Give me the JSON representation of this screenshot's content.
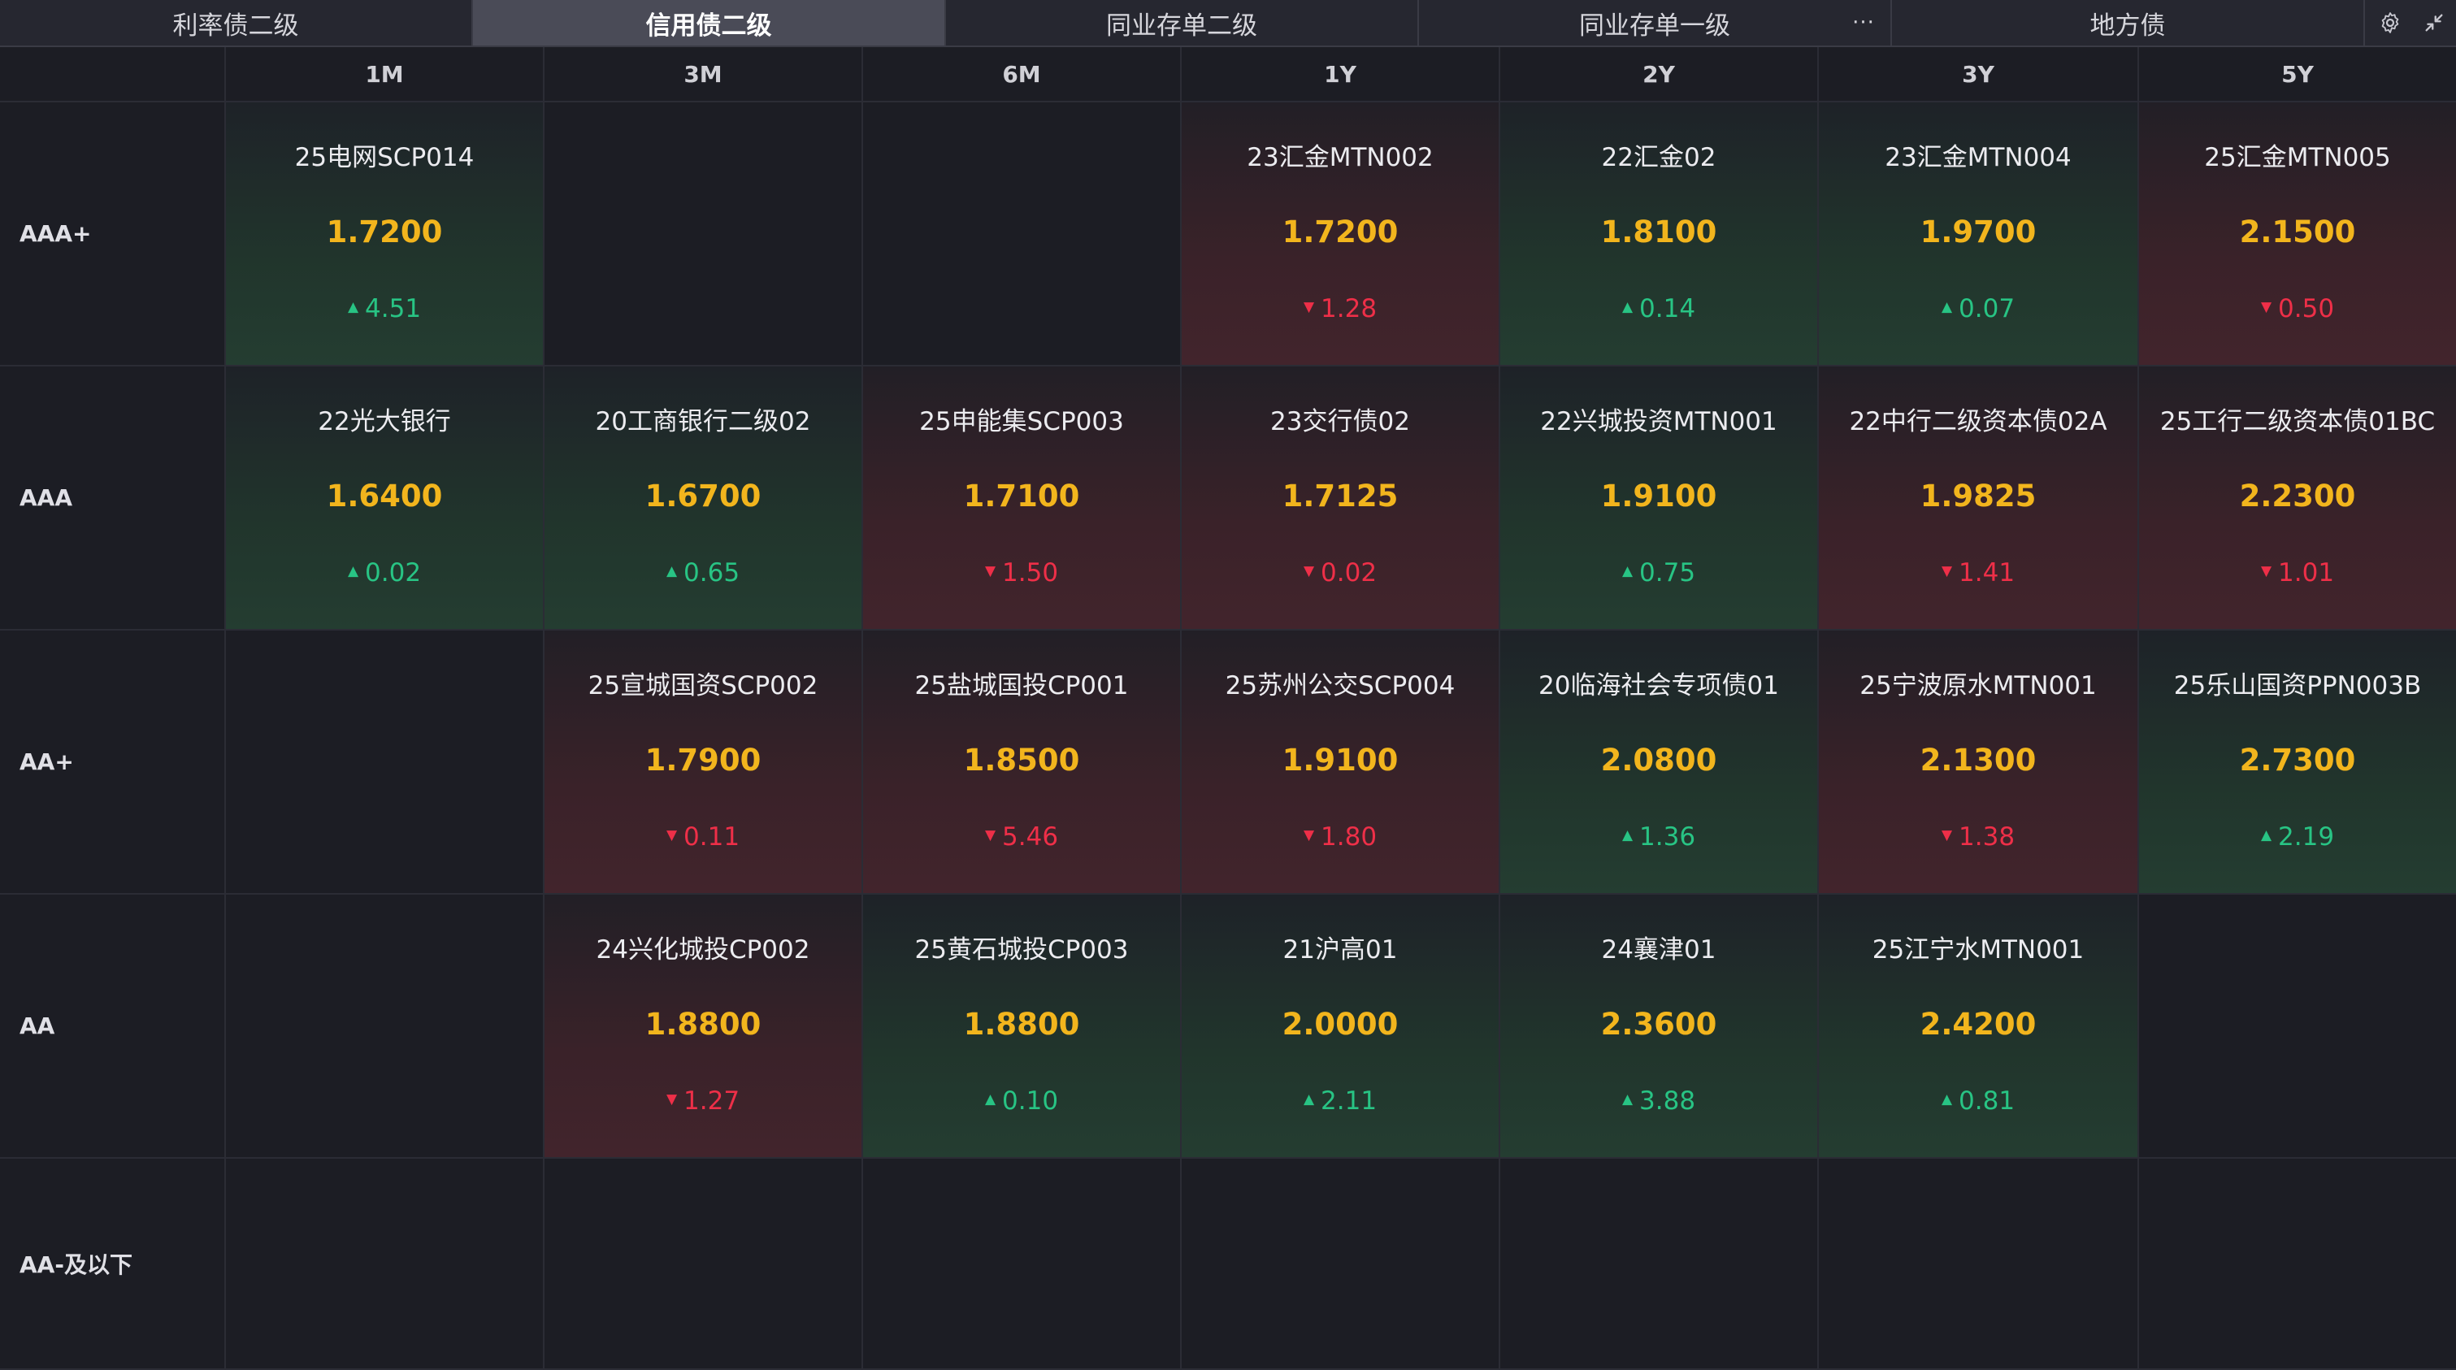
{
  "tabs": [
    {
      "label": "利率债二级",
      "active": false
    },
    {
      "label": "信用债二级",
      "active": true
    },
    {
      "label": "同业存单二级",
      "active": false
    },
    {
      "label": "同业存单一级",
      "active": false
    },
    {
      "label": "地方债",
      "active": false
    }
  ],
  "tab_more_label": "···",
  "toolbar_icons": [
    "settings-icon",
    "collapse-icon"
  ],
  "columns": [
    "1M",
    "3M",
    "6M",
    "1Y",
    "2Y",
    "3Y",
    "5Y"
  ],
  "rows": [
    {
      "rating": "AAA+",
      "cells": [
        {
          "name": "25电网SCP014",
          "yield": "1.7200",
          "change": "4.51",
          "direction": "up"
        },
        null,
        null,
        {
          "name": "23汇金MTN002",
          "yield": "1.7200",
          "change": "1.28",
          "direction": "down"
        },
        {
          "name": "22汇金02",
          "yield": "1.8100",
          "change": "0.14",
          "direction": "up"
        },
        {
          "name": "23汇金MTN004",
          "yield": "1.9700",
          "change": "0.07",
          "direction": "up"
        },
        {
          "name": "25汇金MTN005",
          "yield": "2.1500",
          "change": "0.50",
          "direction": "down"
        }
      ]
    },
    {
      "rating": "AAA",
      "cells": [
        {
          "name": "22光大银行",
          "yield": "1.6400",
          "change": "0.02",
          "direction": "up"
        },
        {
          "name": "20工商银行二级02",
          "yield": "1.6700",
          "change": "0.65",
          "direction": "up"
        },
        {
          "name": "25申能集SCP003",
          "yield": "1.7100",
          "change": "1.50",
          "direction": "down"
        },
        {
          "name": "23交行债02",
          "yield": "1.7125",
          "change": "0.02",
          "direction": "down"
        },
        {
          "name": "22兴城投资MTN001",
          "yield": "1.9100",
          "change": "0.75",
          "direction": "up"
        },
        {
          "name": "22中行二级资本债02A",
          "yield": "1.9825",
          "change": "1.41",
          "direction": "down"
        },
        {
          "name": "25工行二级资本债01BC",
          "yield": "2.2300",
          "change": "1.01",
          "direction": "down"
        }
      ]
    },
    {
      "rating": "AA+",
      "cells": [
        null,
        {
          "name": "25宣城国资SCP002",
          "yield": "1.7900",
          "change": "0.11",
          "direction": "down"
        },
        {
          "name": "25盐城国投CP001",
          "yield": "1.8500",
          "change": "5.46",
          "direction": "down"
        },
        {
          "name": "25苏州公交SCP004",
          "yield": "1.9100",
          "change": "1.80",
          "direction": "down"
        },
        {
          "name": "20临海社会专项债01",
          "yield": "2.0800",
          "change": "1.36",
          "direction": "up"
        },
        {
          "name": "25宁波原水MTN001",
          "yield": "2.1300",
          "change": "1.38",
          "direction": "down"
        },
        {
          "name": "25乐山国资PPN003B",
          "yield": "2.7300",
          "change": "2.19",
          "direction": "up"
        }
      ]
    },
    {
      "rating": "AA",
      "cells": [
        null,
        {
          "name": "24兴化城投CP002",
          "yield": "1.8800",
          "change": "1.27",
          "direction": "down"
        },
        {
          "name": "25黄石城投CP003",
          "yield": "1.8800",
          "change": "0.10",
          "direction": "up"
        },
        {
          "name": "21沪高01",
          "yield": "2.0000",
          "change": "2.11",
          "direction": "up"
        },
        {
          "name": "24襄津01",
          "yield": "2.3600",
          "change": "3.88",
          "direction": "up"
        },
        {
          "name": "25江宁水MTN001",
          "yield": "2.4200",
          "change": "0.81",
          "direction": "up"
        },
        null
      ]
    },
    {
      "rating": "AA-及以下",
      "cells": [
        null,
        null,
        null,
        null,
        null,
        null,
        null
      ]
    }
  ],
  "colors": {
    "up": "#28c484",
    "down": "#ee2f48",
    "yield": "#f2b51d",
    "background": "#1c1d24"
  }
}
